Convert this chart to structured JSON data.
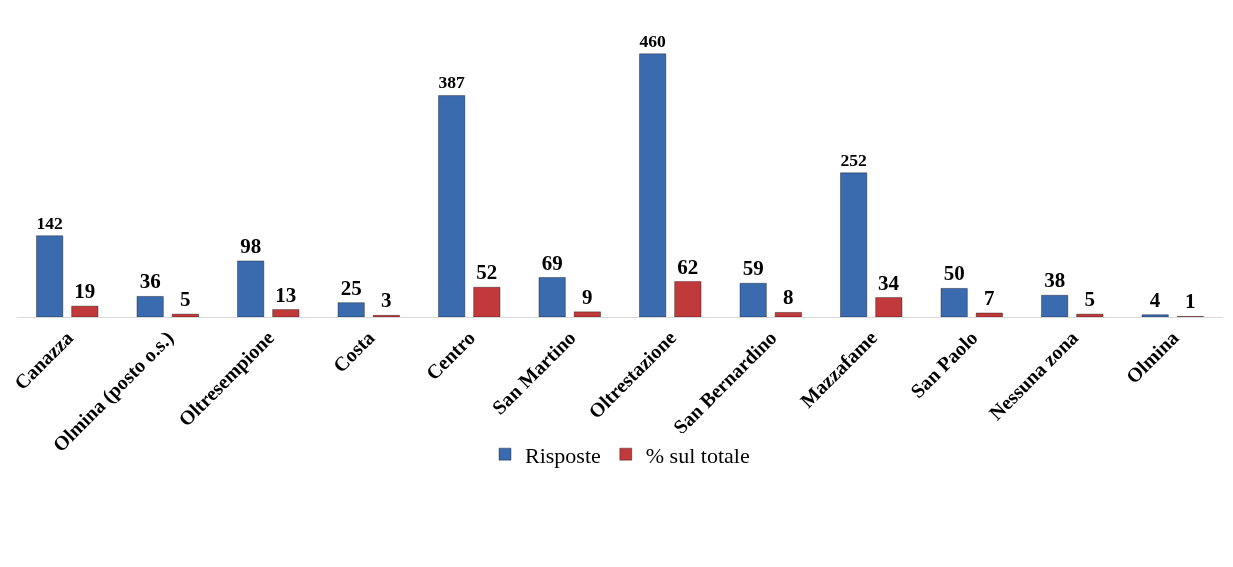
{
  "chart_data": {
    "type": "bar",
    "categories": [
      "Canazza",
      "Olmina (posto o.s.)",
      "Oltresempione",
      "Costa",
      "Centro",
      "San Martino",
      "Oltrestazione",
      "San Bernardino",
      "Mazzafame",
      "San Paolo",
      "Nessuna zona",
      "Olmina"
    ],
    "series": [
      {
        "name": "Risposte",
        "color": "#3b6baf",
        "values": [
          142,
          36,
          98,
          25,
          387,
          69,
          460,
          59,
          252,
          50,
          38,
          4
        ]
      },
      {
        "name": "% sul totale",
        "color": "#c0393b",
        "values": [
          19,
          5,
          13,
          3,
          52,
          9,
          62,
          8,
          34,
          7,
          5,
          1
        ]
      }
    ],
    "data_labels": true,
    "legend": "bottom"
  }
}
